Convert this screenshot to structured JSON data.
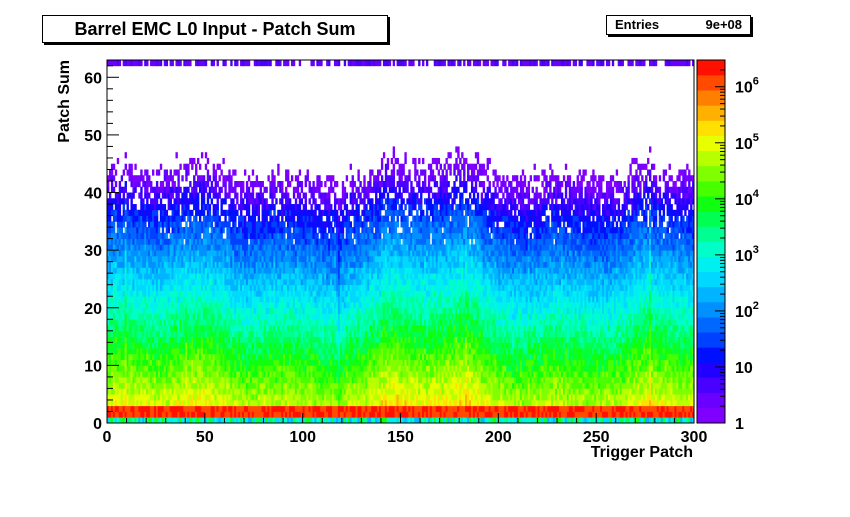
{
  "title": "Barrel EMC L0 Input - Patch Sum",
  "stats": {
    "label": "Entries",
    "value": "9e+08"
  },
  "chart_data": {
    "type": "heatmap",
    "title": "Barrel EMC L0 Input - Patch Sum",
    "xlabel": "Trigger Patch",
    "ylabel": "Patch Sum",
    "xlim": [
      0,
      300
    ],
    "ylim": [
      0,
      63
    ],
    "x_ticks": [
      0,
      50,
      100,
      150,
      200,
      250,
      300
    ],
    "y_ticks": [
      0,
      10,
      20,
      30,
      40,
      50,
      60
    ],
    "z_scale": "log",
    "zlim": [
      1,
      3000000
    ],
    "z_ticks": [
      {
        "value": 1,
        "label": "1"
      },
      {
        "value": 10,
        "label": "10"
      },
      {
        "value": 100,
        "label": "10",
        "exp": "2"
      },
      {
        "value": 1000,
        "label": "10",
        "exp": "3"
      },
      {
        "value": 10000,
        "label": "10",
        "exp": "4"
      },
      {
        "value": 100000,
        "label": "10",
        "exp": "5"
      },
      {
        "value": 1000000,
        "label": "10",
        "exp": "6"
      }
    ],
    "entries": "9e+08",
    "grid": false
  }
}
